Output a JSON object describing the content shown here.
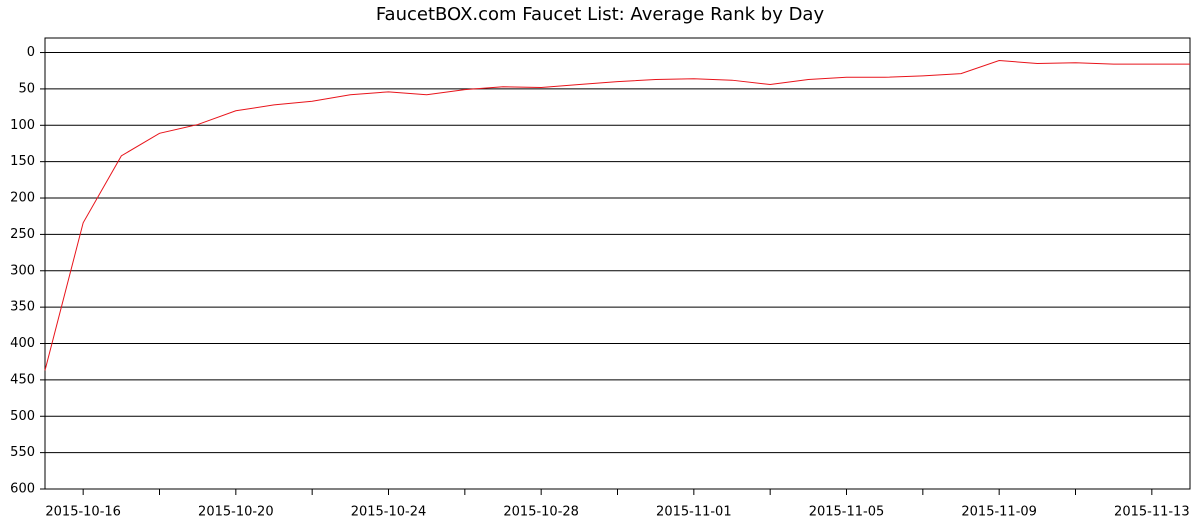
{
  "chart_data": {
    "type": "line",
    "title": "FaucetBOX.com Faucet List: Average Rank by Day",
    "x": [
      "2015-10-15",
      "2015-10-16",
      "2015-10-17",
      "2015-10-18",
      "2015-10-19",
      "2015-10-20",
      "2015-10-21",
      "2015-10-22",
      "2015-10-23",
      "2015-10-24",
      "2015-10-25",
      "2015-10-26",
      "2015-10-27",
      "2015-10-28",
      "2015-10-29",
      "2015-10-30",
      "2015-10-31",
      "2015-11-01",
      "2015-11-02",
      "2015-11-03",
      "2015-11-04",
      "2015-11-05",
      "2015-11-06",
      "2015-11-07",
      "2015-11-08",
      "2015-11-09",
      "2015-11-10",
      "2015-11-11",
      "2015-11-12",
      "2015-11-13",
      "2015-11-14"
    ],
    "series": [
      {
        "color": "#e8141b",
        "values": [
          437,
          234,
          142,
          111,
          99,
          80,
          72,
          67,
          58,
          54,
          58,
          51,
          47,
          48,
          44,
          40,
          37,
          36,
          38,
          44,
          37,
          34,
          34,
          32,
          29,
          11,
          15,
          14,
          16,
          16,
          16
        ]
      }
    ],
    "xlim": [
      "2015-10-15",
      "2015-11-14"
    ],
    "xticks": [
      "2015-10-16",
      "2015-10-20",
      "2015-10-24",
      "2015-10-28",
      "2015-11-01",
      "2015-11-05",
      "2015-11-09",
      "2015-11-13"
    ],
    "xminorticks": [
      "2015-10-18",
      "2015-10-22",
      "2015-10-26",
      "2015-10-30",
      "2015-11-03",
      "2015-11-07",
      "2015-11-11"
    ],
    "ylim": [
      600,
      -20
    ],
    "yticks": [
      0,
      50,
      100,
      150,
      200,
      250,
      300,
      350,
      400,
      450,
      500,
      550,
      600
    ],
    "grid": true
  }
}
